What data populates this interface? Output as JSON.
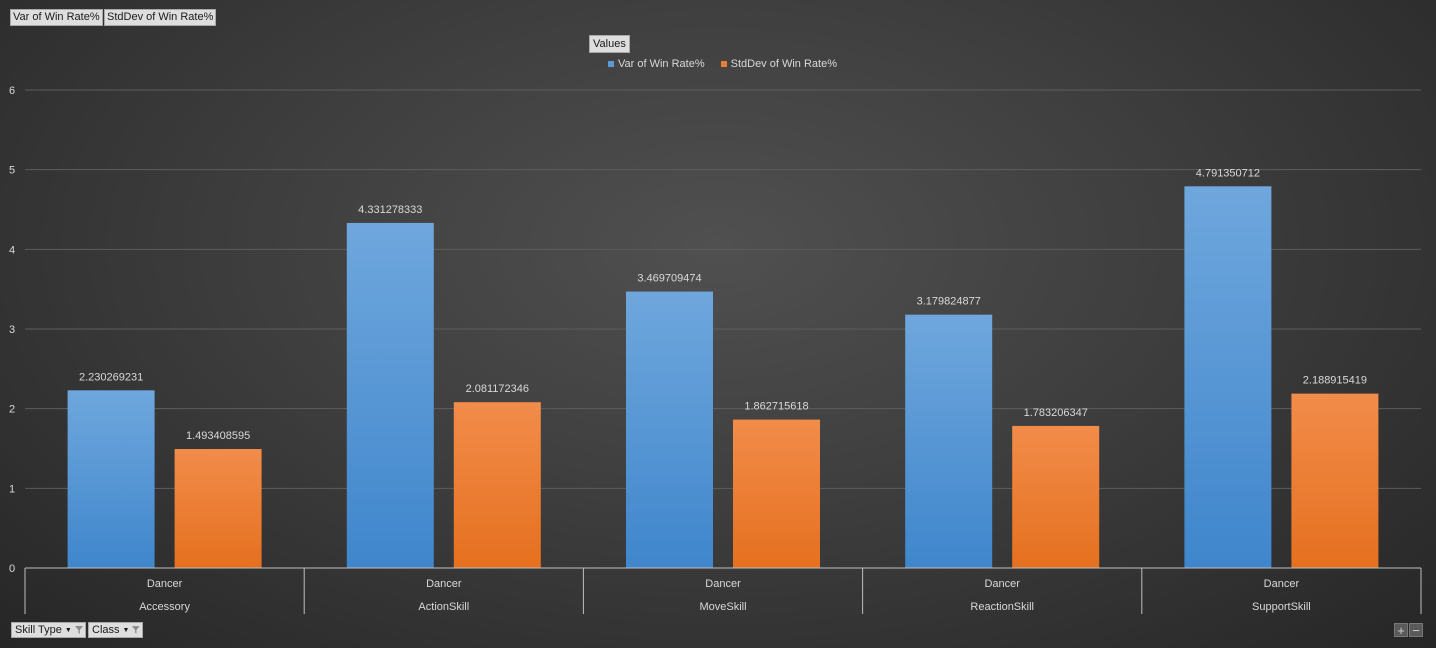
{
  "value_buttons": [
    "Var of Win Rate%",
    "StdDev of Win Rate%"
  ],
  "legend": {
    "title": "Values",
    "items": [
      {
        "label": "Var of Win Rate%",
        "color": "#5b9bd5"
      },
      {
        "label": "StdDev of Win Rate%",
        "color": "#ed7d31"
      }
    ]
  },
  "axis_buttons": {
    "skill_type": "Skill Type",
    "class": "Class"
  },
  "zoom": {
    "plus": "+",
    "minus": "−"
  },
  "chart_data": {
    "type": "bar",
    "categories": [
      "Accessory",
      "ActionSkill",
      "MoveSkill",
      "ReactionSkill",
      "SupportSkill"
    ],
    "sub_categories": [
      "Dancer",
      "Dancer",
      "Dancer",
      "Dancer",
      "Dancer"
    ],
    "series": [
      {
        "name": "Var of Win Rate%",
        "color": "#5b9bd5",
        "values": [
          2.230269231,
          4.331278333,
          3.469709474,
          3.179824877,
          4.791350712
        ],
        "labels": [
          "2.230269231",
          "4.331278333",
          "3.469709474",
          "3.179824877",
          "4.791350712"
        ]
      },
      {
        "name": "StdDev of Win Rate%",
        "color": "#ed7d31",
        "values": [
          1.493408595,
          2.081172346,
          1.862715618,
          1.783206347,
          2.188915419
        ],
        "labels": [
          "1.493408595",
          "2.081172346",
          "1.862715618",
          "1.783206347",
          "2.188915419"
        ]
      }
    ],
    "ylim": [
      0,
      6
    ],
    "yticks": [
      0,
      1,
      2,
      3,
      4,
      5,
      6
    ],
    "grid": true,
    "legend_position": "top-center"
  }
}
